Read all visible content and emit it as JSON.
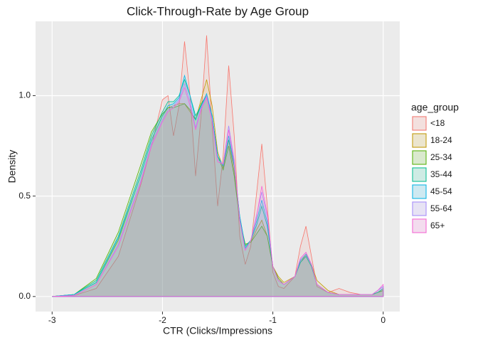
{
  "chart_data": {
    "type": "density",
    "title": "Click-Through-Rate by Age Group",
    "x_label": "CTR (Clicks/Impressions",
    "y_label": "Density",
    "legend_title": "age_group",
    "xlim": [
      -3.15,
      0.15
    ],
    "ylim": [
      -0.075,
      1.37
    ],
    "xticks": [
      -3,
      -2,
      -1,
      0
    ],
    "yticks": [
      {
        "value": 0,
        "label": "0.0"
      },
      {
        "value": 0.5,
        "label": "0.5"
      },
      {
        "value": 1,
        "label": "1.0"
      }
    ],
    "grid": true,
    "x": [
      -3,
      -2.8,
      -2.6,
      -2.4,
      -2.2,
      -2.1,
      -2.0,
      -1.95,
      -1.9,
      -1.85,
      -1.8,
      -1.75,
      -1.7,
      -1.65,
      -1.6,
      -1.55,
      -1.5,
      -1.45,
      -1.4,
      -1.35,
      -1.3,
      -1.25,
      -1.2,
      -1.15,
      -1.1,
      -1.05,
      -1.0,
      -0.95,
      -0.9,
      -0.8,
      -0.75,
      -0.7,
      -0.65,
      -0.6,
      -0.5,
      -0.4,
      -0.3,
      -0.2,
      -0.1,
      -0.05,
      0
    ],
    "series": [
      {
        "name": "<18",
        "color": "#F8766D",
        "values": [
          0,
          0.005,
          0.04,
          0.2,
          0.55,
          0.75,
          0.98,
          1.0,
          0.8,
          0.95,
          1.27,
          1.0,
          0.6,
          0.9,
          1.3,
          0.85,
          0.45,
          0.7,
          1.15,
          0.8,
          0.3,
          0.16,
          0.25,
          0.5,
          0.76,
          0.45,
          0.12,
          0.05,
          0.04,
          0.1,
          0.25,
          0.35,
          0.2,
          0.05,
          0.02,
          0.04,
          0.02,
          0.01,
          0.01,
          0.02,
          0.03
        ]
      },
      {
        "name": "18-24",
        "color": "#C49A00",
        "values": [
          0,
          0.01,
          0.07,
          0.28,
          0.6,
          0.78,
          0.9,
          0.94,
          0.95,
          0.96,
          0.96,
          0.92,
          0.88,
          0.98,
          1.08,
          0.95,
          0.72,
          0.64,
          0.78,
          0.62,
          0.38,
          0.26,
          0.27,
          0.33,
          0.38,
          0.3,
          0.15,
          0.1,
          0.07,
          0.1,
          0.17,
          0.21,
          0.16,
          0.08,
          0.03,
          0.01,
          0.01,
          0.01,
          0.01,
          0.02,
          0.04
        ]
      },
      {
        "name": "25-34",
        "color": "#53B400",
        "values": [
          0,
          0.01,
          0.09,
          0.32,
          0.65,
          0.82,
          0.91,
          0.94,
          0.94,
          0.95,
          0.96,
          0.93,
          0.88,
          0.96,
          1.0,
          0.9,
          0.7,
          0.63,
          0.75,
          0.6,
          0.38,
          0.26,
          0.27,
          0.31,
          0.35,
          0.3,
          0.15,
          0.09,
          0.06,
          0.1,
          0.17,
          0.2,
          0.15,
          0.06,
          0.02,
          0.01,
          0.01,
          0.01,
          0.01,
          0.02,
          0.03
        ]
      },
      {
        "name": "35-44",
        "color": "#00C094",
        "values": [
          0,
          0.01,
          0.08,
          0.3,
          0.62,
          0.8,
          0.92,
          0.97,
          0.97,
          1.0,
          1.08,
          1.0,
          0.9,
          0.95,
          1.0,
          0.9,
          0.7,
          0.65,
          0.78,
          0.65,
          0.4,
          0.25,
          0.28,
          0.35,
          0.45,
          0.35,
          0.15,
          0.08,
          0.06,
          0.1,
          0.17,
          0.2,
          0.15,
          0.06,
          0.02,
          0.01,
          0.01,
          0.01,
          0.01,
          0.02,
          0.04
        ]
      },
      {
        "name": "45-54",
        "color": "#00B6EB",
        "values": [
          0,
          0.01,
          0.07,
          0.29,
          0.6,
          0.78,
          0.9,
          0.95,
          0.96,
          0.99,
          1.1,
          1.0,
          0.88,
          0.95,
          1.01,
          0.9,
          0.7,
          0.65,
          0.8,
          0.66,
          0.4,
          0.24,
          0.28,
          0.37,
          0.48,
          0.37,
          0.15,
          0.08,
          0.06,
          0.1,
          0.18,
          0.21,
          0.16,
          0.06,
          0.02,
          0.01,
          0.01,
          0.01,
          0.01,
          0.03,
          0.05
        ]
      },
      {
        "name": "55-64",
        "color": "#A58AFF",
        "values": [
          0,
          0.005,
          0.06,
          0.26,
          0.57,
          0.76,
          0.88,
          0.93,
          0.95,
          0.98,
          1.06,
          0.97,
          0.84,
          0.94,
          1.0,
          0.88,
          0.68,
          0.66,
          0.85,
          0.68,
          0.38,
          0.23,
          0.28,
          0.4,
          0.52,
          0.4,
          0.15,
          0.08,
          0.06,
          0.1,
          0.19,
          0.22,
          0.16,
          0.06,
          0.02,
          0.01,
          0.01,
          0.01,
          0.01,
          0.03,
          0.05
        ]
      },
      {
        "name": "65+",
        "color": "#FB61D7",
        "values": [
          0,
          0.005,
          0.06,
          0.25,
          0.56,
          0.75,
          0.87,
          0.92,
          0.94,
          0.97,
          1.04,
          0.95,
          0.83,
          0.93,
          0.99,
          0.87,
          0.67,
          0.66,
          0.83,
          0.67,
          0.38,
          0.23,
          0.28,
          0.39,
          0.55,
          0.41,
          0.15,
          0.08,
          0.06,
          0.1,
          0.19,
          0.22,
          0.16,
          0.06,
          0.02,
          0.01,
          0.01,
          0.01,
          0.01,
          0.03,
          0.06
        ]
      }
    ]
  }
}
